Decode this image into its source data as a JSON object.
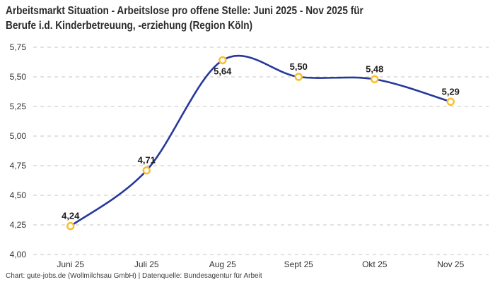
{
  "title": {
    "line1": "Arbeitsmarkt Situation - Arbeitslose pro offene Stelle: Juni 2025 - Nov 2025 für",
    "line2": "Berufe i.d. Kinderbetreuung, -erziehung (Region Köln)"
  },
  "footer": "Chart: gute-jobs.de (Wollmilchsau GmbH) | Datenquelle: Bundesagentur für Arbeit",
  "chart_data": {
    "type": "line",
    "title": "Arbeitsmarkt Situation - Arbeitslose pro offene Stelle: Juni 2025 - Nov 2025 für Berufe i.d. Kinderbetreuung, -erziehung (Region Köln)",
    "categories": [
      "Juni 25",
      "Juli 25",
      "Aug 25",
      "Sept 25",
      "Okt 25",
      "Nov 25"
    ],
    "values": [
      4.24,
      4.71,
      5.64,
      5.5,
      5.48,
      5.29
    ],
    "point_labels": [
      "4,24",
      "4,71",
      "5,64",
      "5,50",
      "5,48",
      "5,29"
    ],
    "label_positions": [
      "above",
      "above",
      "below",
      "above",
      "above",
      "above"
    ],
    "xlabel": "",
    "ylabel": "",
    "ylim": [
      4.0,
      5.75
    ],
    "ytick_values": [
      4.0,
      4.25,
      4.5,
      4.75,
      5.0,
      5.25,
      5.5,
      5.75
    ],
    "ytick_labels": [
      "4,00",
      "4,25",
      "4,50",
      "4,75",
      "5,00",
      "5,25",
      "5,50",
      "5,75"
    ],
    "grid": "horizontal-dashed",
    "legend": "none",
    "colors": {
      "line": "#26389b",
      "marker_stroke": "#fbbe28",
      "marker_fill": "#ffffff",
      "grid": "#c6c6c6",
      "axis_text": "#333333",
      "point_label_text": "#1d1d1d",
      "title_text": "#2b2b2b"
    }
  }
}
